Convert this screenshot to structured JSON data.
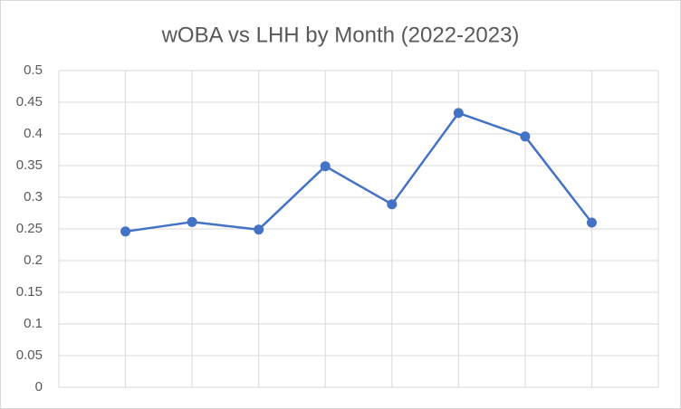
{
  "chart_data": {
    "type": "line",
    "title": "wOBA vs LHH by Month (2022-2023)",
    "categories": [
      null,
      null,
      null,
      null,
      null,
      null,
      null,
      null
    ],
    "series": [
      {
        "name": null,
        "color": "#4472c4",
        "values": [
          0.246,
          0.261,
          0.249,
          0.349,
          0.289,
          0.433,
          0.396,
          0.26
        ]
      }
    ],
    "ylim": [
      0,
      0.5
    ],
    "yticks": [
      0,
      0.05,
      0.1,
      0.15,
      0.2,
      0.25,
      0.3,
      0.35,
      0.4,
      0.45,
      0.5
    ],
    "grid": true
  }
}
